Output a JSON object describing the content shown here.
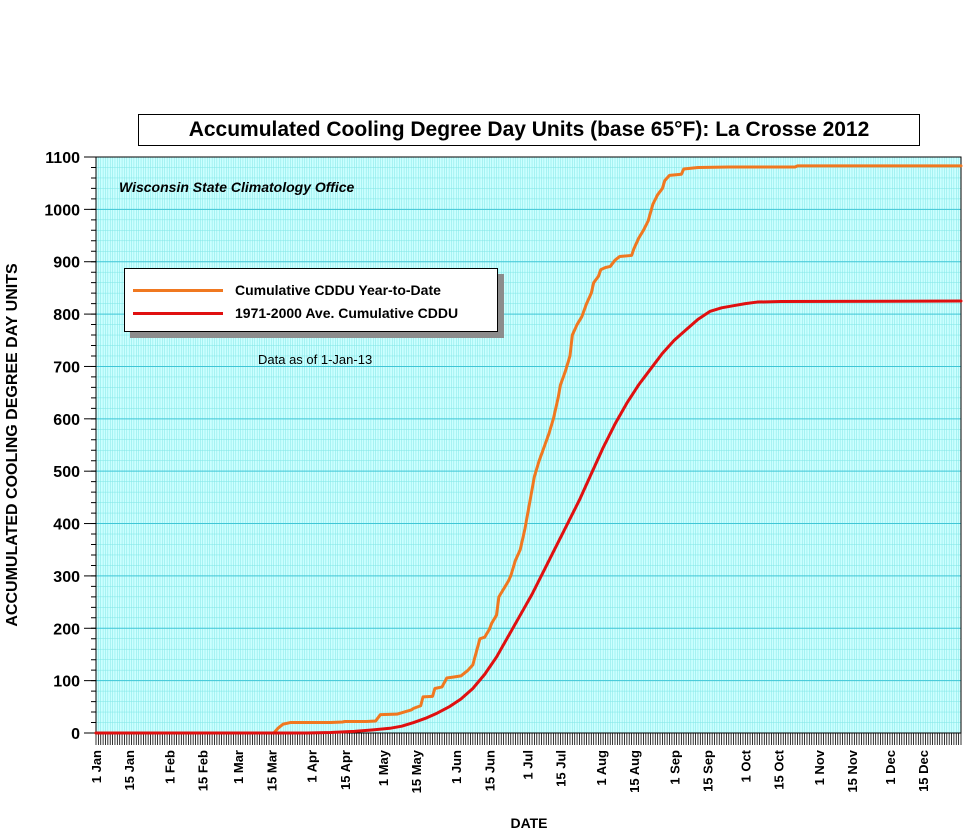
{
  "chart_data": {
    "type": "line",
    "title": "Accumulated Cooling Degree Day Units (base 65°F): La Crosse 2012",
    "source_note": "Wisconsin State Climatology Office",
    "annotation": "Data as of 1-Jan-13",
    "xlabel": "DATE",
    "ylabel": "ACCUMULATED COOLING DEGREE DAY UNITS",
    "x_tick_labels": [
      "1 Jan",
      "15 Jan",
      "1 Feb",
      "15 Feb",
      "1 Mar",
      "15 Mar",
      "1 Apr",
      "15 Apr",
      "1 May",
      "15 May",
      "1 Jun",
      "15 Jun",
      "1 Jul",
      "15 Jul",
      "1 Aug",
      "15 Aug",
      "1 Sep",
      "15 Sep",
      "1 Oct",
      "15 Oct",
      "1 Nov",
      "15 Nov",
      "1 Dec",
      "15 Dec"
    ],
    "x_tick_days": [
      1,
      15,
      32,
      46,
      61,
      75,
      92,
      106,
      122,
      136,
      153,
      167,
      183,
      197,
      214,
      228,
      245,
      259,
      275,
      289,
      306,
      320,
      336,
      350
    ],
    "xlim_days": [
      1,
      366
    ],
    "y_ticks": [
      0,
      100,
      200,
      300,
      400,
      500,
      600,
      700,
      800,
      900,
      1000,
      1100
    ],
    "ylim": [
      0,
      1100
    ],
    "grid": true,
    "legend_position": "upper-left",
    "series": [
      {
        "name": "Cumulative CDDU Year-to-Date",
        "color": "#f07820",
        "points": [
          [
            1,
            0
          ],
          [
            76,
            0
          ],
          [
            78,
            10
          ],
          [
            80,
            17
          ],
          [
            83,
            20
          ],
          [
            90,
            20
          ],
          [
            100,
            20
          ],
          [
            105,
            21
          ],
          [
            106,
            22
          ],
          [
            115,
            22
          ],
          [
            119,
            23
          ],
          [
            121,
            35
          ],
          [
            128,
            36
          ],
          [
            131,
            40
          ],
          [
            134,
            44
          ],
          [
            135,
            47
          ],
          [
            138,
            52
          ],
          [
            139,
            69
          ],
          [
            143,
            70
          ],
          [
            144,
            85
          ],
          [
            147,
            88
          ],
          [
            149,
            105
          ],
          [
            152,
            107
          ],
          [
            155,
            109
          ],
          [
            158,
            120
          ],
          [
            160,
            130
          ],
          [
            163,
            180
          ],
          [
            165,
            183
          ],
          [
            167,
            198
          ],
          [
            168,
            210
          ],
          [
            170,
            225
          ],
          [
            171,
            260
          ],
          [
            173,
            275
          ],
          [
            175,
            290
          ],
          [
            176,
            300
          ],
          [
            178,
            330
          ],
          [
            180,
            350
          ],
          [
            182,
            390
          ],
          [
            184,
            440
          ],
          [
            186,
            490
          ],
          [
            188,
            520
          ],
          [
            190,
            545
          ],
          [
            192,
            570
          ],
          [
            194,
            600
          ],
          [
            196,
            640
          ],
          [
            197,
            665
          ],
          [
            199,
            690
          ],
          [
            201,
            720
          ],
          [
            202,
            760
          ],
          [
            204,
            780
          ],
          [
            206,
            795
          ],
          [
            208,
            820
          ],
          [
            210,
            840
          ],
          [
            211,
            860
          ],
          [
            213,
            872
          ],
          [
            214,
            885
          ],
          [
            216,
            889
          ],
          [
            218,
            891
          ],
          [
            220,
            903
          ],
          [
            222,
            910
          ],
          [
            227,
            912
          ],
          [
            228,
            925
          ],
          [
            230,
            945
          ],
          [
            232,
            960
          ],
          [
            234,
            978
          ],
          [
            236,
            1010
          ],
          [
            238,
            1028
          ],
          [
            240,
            1040
          ],
          [
            241,
            1055
          ],
          [
            243,
            1065
          ],
          [
            248,
            1067
          ],
          [
            249,
            1077
          ],
          [
            253,
            1079
          ],
          [
            255,
            1080
          ],
          [
            268,
            1081
          ],
          [
            296,
            1081
          ],
          [
            297,
            1083
          ],
          [
            366,
            1083
          ]
        ]
      },
      {
        "name": "1971-2000 Ave. Cumulative CDDU",
        "color": "#e01010",
        "points": [
          [
            1,
            0
          ],
          [
            90,
            0
          ],
          [
            100,
            1
          ],
          [
            110,
            3
          ],
          [
            118,
            6
          ],
          [
            125,
            9
          ],
          [
            130,
            13
          ],
          [
            135,
            20
          ],
          [
            140,
            28
          ],
          [
            145,
            38
          ],
          [
            150,
            50
          ],
          [
            155,
            65
          ],
          [
            160,
            85
          ],
          [
            165,
            112
          ],
          [
            170,
            145
          ],
          [
            175,
            185
          ],
          [
            180,
            225
          ],
          [
            185,
            265
          ],
          [
            190,
            310
          ],
          [
            195,
            355
          ],
          [
            200,
            400
          ],
          [
            205,
            445
          ],
          [
            210,
            495
          ],
          [
            215,
            545
          ],
          [
            220,
            590
          ],
          [
            225,
            630
          ],
          [
            230,
            665
          ],
          [
            235,
            695
          ],
          [
            240,
            725
          ],
          [
            245,
            750
          ],
          [
            250,
            770
          ],
          [
            255,
            790
          ],
          [
            260,
            805
          ],
          [
            265,
            812
          ],
          [
            270,
            816
          ],
          [
            275,
            820
          ],
          [
            280,
            823
          ],
          [
            290,
            824
          ],
          [
            366,
            825
          ]
        ]
      }
    ]
  }
}
